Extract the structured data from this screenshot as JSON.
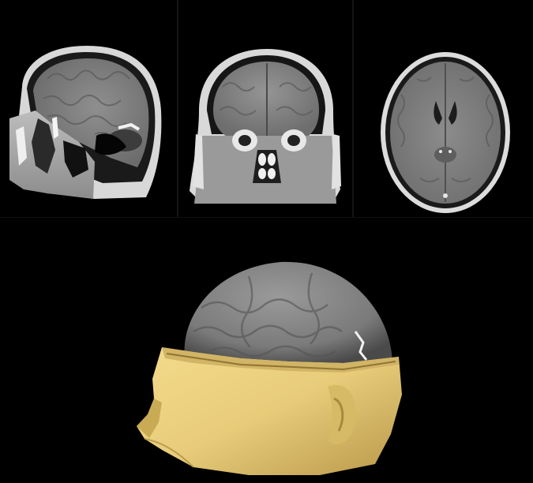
{
  "figure": {
    "background": "#000000",
    "panels": [
      {
        "view": "sagittal",
        "icon": "mri-sagittal-slice"
      },
      {
        "view": "coronal",
        "icon": "mri-coronal-slice"
      },
      {
        "view": "axial",
        "icon": "mri-axial-slice"
      },
      {
        "view": "3d-render",
        "icon": "head-3d-render"
      }
    ],
    "colors": {
      "skin_render": "#e8cc7a",
      "brain_gray": "#8a8a8a",
      "skull_white": "#e6e6e6"
    }
  }
}
